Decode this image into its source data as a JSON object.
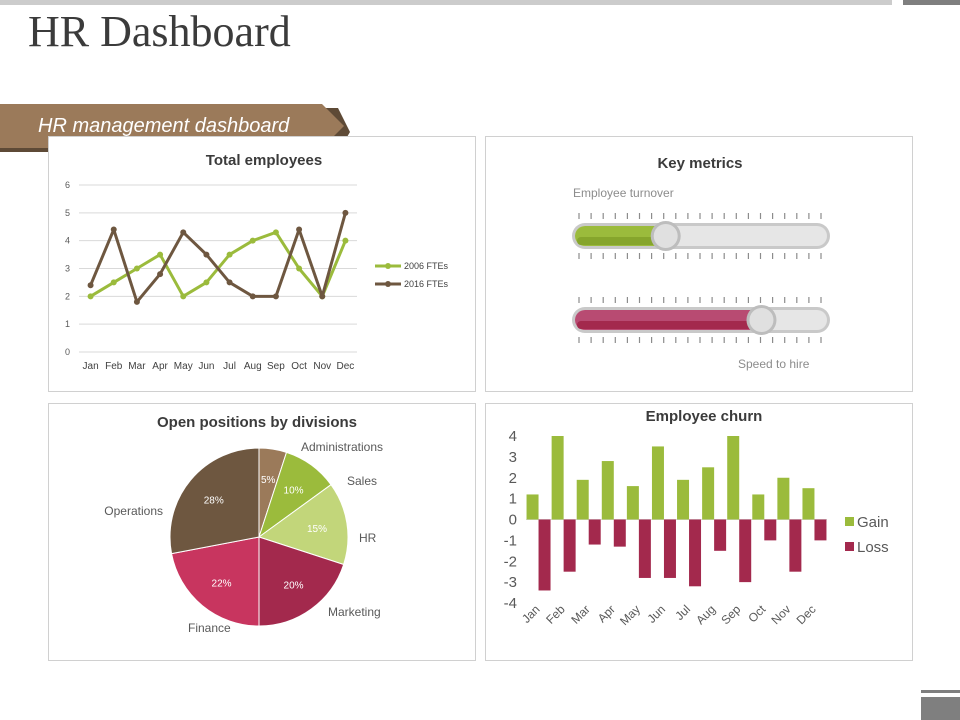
{
  "header": {
    "title": "HR Dashboard",
    "banner": "HR management dashboard"
  },
  "colors": {
    "accent_green": "#9bbb3c",
    "light_green": "#c2d67a",
    "brown": "#6e5740",
    "tan": "#9b7a5a",
    "crimson": "#a3294d",
    "pink": "#c8355f",
    "banner_brown": "#9b7a5a"
  },
  "key_metrics": {
    "title": "Key metrics",
    "turnover_label": "Employee turnover",
    "turnover_value": 0.36,
    "speed_label": "Speed to hire",
    "speed_value": 0.74
  },
  "chart_data": [
    {
      "type": "line",
      "title": "Total employees",
      "categories": [
        "Jan",
        "Feb",
        "Mar",
        "Apr",
        "May",
        "Jun",
        "Jul",
        "Aug",
        "Sep",
        "Oct",
        "Nov",
        "Dec"
      ],
      "series": [
        {
          "name": "2006 FTEs",
          "color": "#9bbb3c",
          "values": [
            2,
            2.5,
            3,
            3.5,
            2,
            2.5,
            3.5,
            4,
            4.3,
            3,
            2,
            4
          ]
        },
        {
          "name": "2016 FTEs",
          "color": "#6e5740",
          "values": [
            2.4,
            4.4,
            1.8,
            2.8,
            4.3,
            3.5,
            2.5,
            2,
            2,
            4.4,
            2,
            5
          ]
        }
      ],
      "ylim": [
        0,
        6
      ],
      "yticks": [
        "0",
        "1",
        "2",
        "3",
        "4",
        "5",
        "6"
      ],
      "legend": "right"
    },
    {
      "type": "pie",
      "title": "Open positions by divisions",
      "slices": [
        {
          "label": "Administrations",
          "value": 5,
          "text": "5%",
          "color": "#9b7a5a"
        },
        {
          "label": "Sales",
          "value": 10,
          "text": "10%",
          "color": "#9bbb3c"
        },
        {
          "label": "HR",
          "value": 15,
          "text": "15%",
          "color": "#c2d67a"
        },
        {
          "label": "Marketing",
          "value": 20,
          "text": "20%",
          "color": "#a3294d"
        },
        {
          "label": "Finance",
          "value": 22,
          "text": "22%",
          "color": "#c8355f"
        },
        {
          "label": "Operations",
          "value": 28,
          "text": "28%",
          "color": "#6e5740"
        }
      ]
    },
    {
      "type": "bar",
      "title": "Employee churn",
      "categories": [
        "Jan",
        "Feb",
        "Mar",
        "Apr",
        "May",
        "Jun",
        "Jul",
        "Aug",
        "Sep",
        "Oct",
        "Nov",
        "Dec"
      ],
      "series": [
        {
          "name": "Gain",
          "color": "#9bbb3c",
          "values": [
            1.2,
            4,
            1.9,
            2.8,
            1.6,
            3.5,
            1.9,
            2.5,
            4,
            1.2,
            2,
            1.5
          ]
        },
        {
          "name": "Loss",
          "color": "#a3294d",
          "values": [
            -3.4,
            -2.5,
            -1.2,
            -1.3,
            -2.8,
            -2.8,
            -3.2,
            -1.5,
            -3,
            -1,
            -2.5,
            -1
          ]
        }
      ],
      "ylim": [
        -4,
        4
      ],
      "yticks": [
        "4",
        "3",
        "2",
        "1",
        "0",
        "-1",
        "-2",
        "-3",
        "-4"
      ],
      "legend": "right"
    }
  ]
}
